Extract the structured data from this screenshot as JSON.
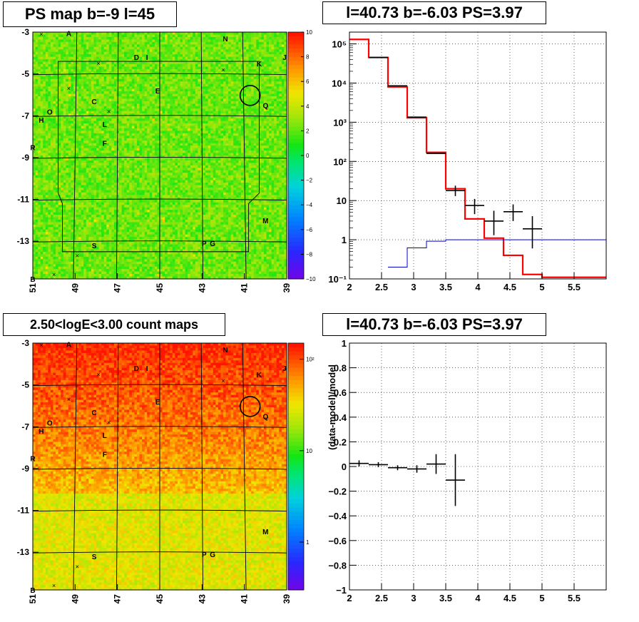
{
  "panels": {
    "top_left_title": "PS map b=-9 l=45",
    "top_right_title": "l=40.73 b=-6.03 PS=3.97",
    "bottom_left_title": "2.50<logE<3.00 count maps",
    "bottom_right_title": "l=40.73 b=-6.03 PS=3.97"
  },
  "colors": {
    "model": "#ff0000",
    "data": "#000000",
    "background_model": "#0000cc",
    "grid": "#000000"
  },
  "chart_data": [
    {
      "type": "heatmap",
      "title": "PS map b=-9 l=45",
      "x_ticks": [
        "51",
        "49",
        "47",
        "45",
        "43",
        "41",
        "39"
      ],
      "y_ticks": [
        "-3",
        "-5",
        "-7",
        "-9",
        "-11",
        "-13"
      ],
      "xlim": [
        51,
        39
      ],
      "ylim": [
        -14.8,
        -3
      ],
      "colorbar": {
        "min": -10,
        "max": 10,
        "ticks": [
          "10",
          "8",
          "6",
          "4",
          "2",
          "0",
          "−2",
          "−4",
          "−6",
          "−8",
          "−10"
        ]
      },
      "source_labels": [
        {
          "text": "A",
          "l": 49.3,
          "b": -3.05
        },
        {
          "text": "N",
          "l": 41.9,
          "b": -3.3
        },
        {
          "text": "D",
          "l": 46.1,
          "b": -4.2
        },
        {
          "text": "I",
          "l": 45.6,
          "b": -4.2
        },
        {
          "text": "K",
          "l": 40.3,
          "b": -4.5
        },
        {
          "text": "J",
          "l": 39.1,
          "b": -4.2
        },
        {
          "text": "E",
          "l": 45.1,
          "b": -5.8
        },
        {
          "text": "C",
          "l": 48.1,
          "b": -6.3
        },
        {
          "text": "Q",
          "l": 40.0,
          "b": -6.5
        },
        {
          "text": "O",
          "l": 50.2,
          "b": -6.8
        },
        {
          "text": "H",
          "l": 50.6,
          "b": -7.2
        },
        {
          "text": "L",
          "l": 47.6,
          "b": -7.4
        },
        {
          "text": "F",
          "l": 47.6,
          "b": -8.3
        },
        {
          "text": "R",
          "l": 51.0,
          "b": -8.5
        },
        {
          "text": "M",
          "l": 40.0,
          "b": -12.0
        },
        {
          "text": "S",
          "l": 48.1,
          "b": -13.2
        },
        {
          "text": "P",
          "l": 42.9,
          "b": -13.1
        },
        {
          "text": "G",
          "l": 42.5,
          "b": -13.1
        },
        {
          "text": "B",
          "l": 51.0,
          "b": -14.8
        }
      ],
      "source_markers": [
        {
          "l": 50.6,
          "b": -3.1
        },
        {
          "l": 47.9,
          "b": -4.5
        },
        {
          "l": 42.0,
          "b": -4.8
        },
        {
          "l": 49.3,
          "b": -5.7
        },
        {
          "l": 47.4,
          "b": -6.8
        },
        {
          "l": 50.0,
          "b": -14.6
        },
        {
          "l": 48.9,
          "b": -13.7
        }
      ],
      "highlight_circle": {
        "l": 40.73,
        "b": -6.03
      }
    },
    {
      "type": "line",
      "title": "l=40.73 b=-6.03 PS=3.97",
      "xlabel": "",
      "ylabel": "",
      "log_y": true,
      "xlim": [
        2,
        6
      ],
      "ylim": [
        0.1,
        200000
      ],
      "x_ticks": [
        "2",
        "2.5",
        "3",
        "3.5",
        "4",
        "4.5",
        "5",
        "5.5"
      ],
      "y_ticks": [
        "10⁻¹",
        "1",
        "10",
        "10²",
        "10³",
        "10⁴",
        "10⁵"
      ],
      "grid": true,
      "series": [
        {
          "role": "model",
          "edges": [
            2.0,
            2.3,
            2.6,
            2.9,
            3.2,
            3.5,
            3.8,
            4.1,
            4.4,
            4.7,
            5.0,
            6.0
          ],
          "values": [
            130000,
            45000,
            8000,
            1300,
            170,
            20,
            3.4,
            1.1,
            0.4,
            0.13,
            0.11
          ]
        },
        {
          "role": "background",
          "edges": [
            2.6,
            2.9,
            3.2,
            3.5,
            6.0
          ],
          "values": [
            0.2,
            0.62,
            0.92,
            1.0
          ]
        },
        {
          "role": "data",
          "x": [
            2.45,
            2.75,
            3.05,
            3.35,
            3.65,
            3.95,
            4.25,
            4.55,
            4.85
          ],
          "y": [
            45000,
            8500,
            1350,
            160,
            18,
            7.5,
            3.0,
            5.2,
            1.9
          ],
          "y_low": [
            45000,
            8500,
            1350,
            160,
            13,
            4.5,
            1.3,
            3.0,
            0.6
          ],
          "y_high": [
            45000,
            8500,
            1350,
            160,
            24,
            11,
            5.5,
            8.0,
            4.0
          ],
          "x_halfwidth": 0.15
        }
      ]
    },
    {
      "type": "heatmap",
      "title": "2.50<logE<3.00 count maps",
      "x_ticks": [
        "51",
        "49",
        "47",
        "45",
        "43",
        "41",
        "39"
      ],
      "y_ticks": [
        "-3",
        "-5",
        "-7",
        "-9",
        "-11",
        "-13"
      ],
      "xlim": [
        51,
        39
      ],
      "ylim": [
        -14.8,
        -3
      ],
      "colorbar": {
        "log": true,
        "min": 0.3,
        "max": 150,
        "ticks": [
          "10²",
          "10",
          "1"
        ]
      },
      "highlight_circle": {
        "l": 40.73,
        "b": -6.03
      }
    },
    {
      "type": "scatter",
      "title": "l=40.73 b=-6.03 PS=3.97",
      "xlabel": "",
      "ylabel": "(data-model)/model",
      "xlim": [
        2,
        6
      ],
      "ylim": [
        -1,
        1
      ],
      "x_ticks": [
        "2",
        "2.5",
        "3",
        "3.5",
        "4",
        "4.5",
        "5",
        "5.5"
      ],
      "y_ticks": [
        "1",
        "0.8",
        "0.6",
        "0.4",
        "0.2",
        "0",
        "−0.2",
        "−0.4",
        "−0.6",
        "−0.8",
        "−1"
      ],
      "grid": true,
      "series": [
        {
          "role": "data",
          "x": [
            2.15,
            2.45,
            2.75,
            3.05,
            3.35,
            3.65
          ],
          "y": [
            0.025,
            0.015,
            -0.01,
            -0.02,
            0.02,
            -0.11
          ],
          "y_low": [
            0.0,
            -0.005,
            -0.03,
            -0.05,
            -0.06,
            -0.32
          ],
          "y_high": [
            0.05,
            0.035,
            0.01,
            0.01,
            0.1,
            0.1
          ],
          "x_halfwidth": 0.15
        }
      ]
    }
  ]
}
